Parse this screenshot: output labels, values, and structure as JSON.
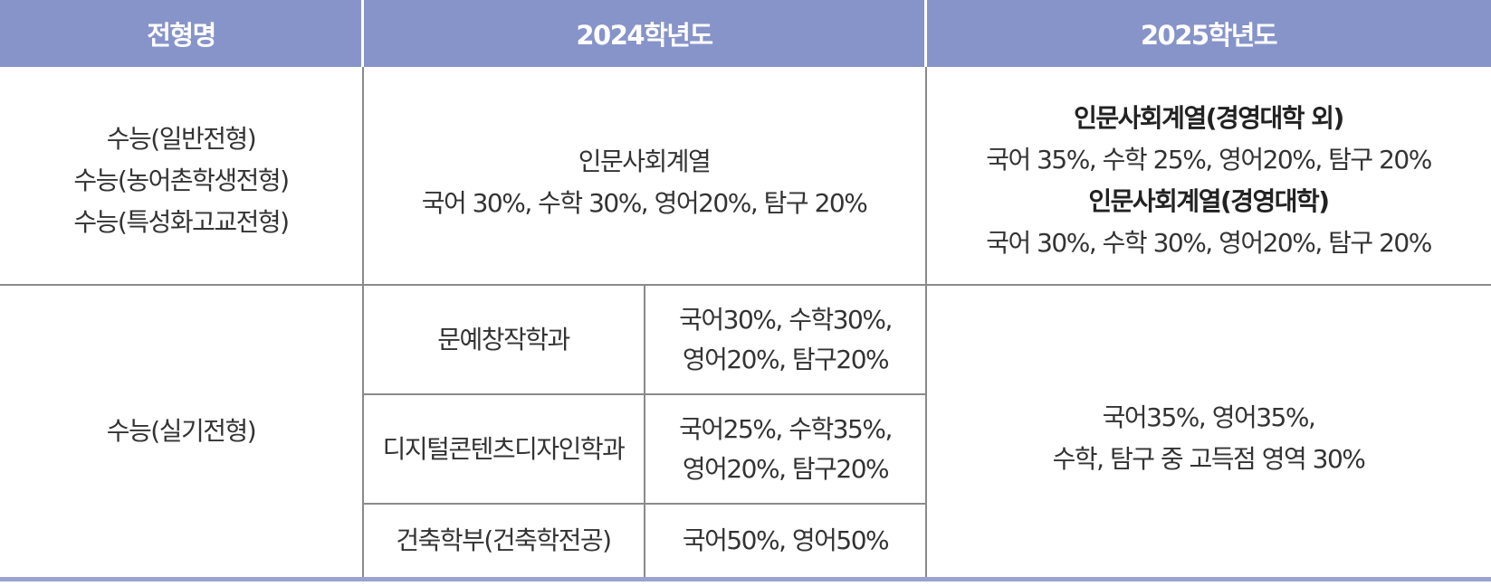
{
  "header": {
    "col1": "전형명",
    "col2": "2024학년도",
    "col3": "2025학년도"
  },
  "row1": {
    "name_lines": [
      "수능(일반전형)",
      "수능(농어촌학생전형)",
      "수능(특성화고교전형)"
    ],
    "y2024": {
      "title": "인문사회계열",
      "ratio": "국어 30%, 수학 30%, 영어20%, 탐구 20%"
    },
    "y2025": {
      "title_a": "인문사회계열(경영대학 외)",
      "ratio_a": "국어 35%, 수학 25%, 영어20%, 탐구 20%",
      "title_b": "인문사회계열(경영대학)",
      "ratio_b": "국어 30%, 수학 30%, 영어20%, 탐구 20%"
    }
  },
  "row2": {
    "name": "수능(실기전형)",
    "y2024": [
      {
        "dept": "문예창작학과",
        "ratio_lines": [
          "국어30%, 수학30%,",
          "영어20%, 탐구20%"
        ]
      },
      {
        "dept": "디지털콘텐츠디자인학과",
        "ratio_lines": [
          "국어25%, 수학35%,",
          "영어20%, 탐구20%"
        ]
      },
      {
        "dept": "건축학부(건축학전공)",
        "ratio_lines": [
          "국어50%, 영어50%"
        ]
      }
    ],
    "y2025_lines": [
      "국어35%, 영어35%,",
      "수학, 탐구 중 고득점 영역 30%"
    ]
  },
  "colors": {
    "header_bg": "#8794c9",
    "header_text": "#ffffff",
    "border": "#8a8a8a",
    "bottom_rule": "#9aa3cf"
  }
}
